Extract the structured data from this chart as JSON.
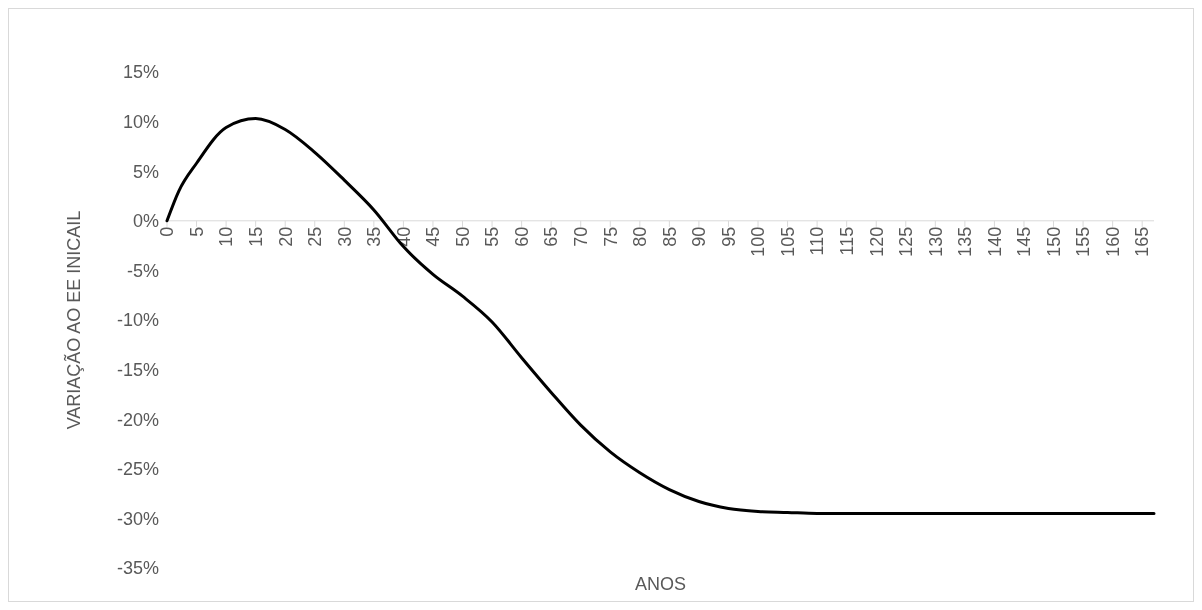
{
  "chart_data": {
    "type": "line",
    "xlabel": "ANOS",
    "ylabel": "VARIAÇÃO AO EE INICAIL",
    "x": [
      0,
      2,
      5,
      10,
      15,
      20,
      25,
      30,
      35,
      40,
      45,
      50,
      55,
      60,
      65,
      70,
      75,
      80,
      85,
      90,
      95,
      100,
      105,
      110,
      120,
      130,
      140,
      150,
      160,
      167
    ],
    "series": [
      {
        "color": "#000000",
        "values": [
          0,
          3,
          5.8,
          9.4,
          10.3,
          9.2,
          6.9,
          4.1,
          1.1,
          -2.6,
          -5.4,
          -7.6,
          -10.2,
          -13.8,
          -17.3,
          -20.6,
          -23.3,
          -25.4,
          -27.1,
          -28.3,
          -29,
          -29.3,
          -29.4,
          -29.5,
          -29.5,
          -29.5,
          -29.5,
          -29.5,
          -29.5,
          -29.5
        ]
      }
    ],
    "xlim": [
      0,
      167
    ],
    "xticks": [
      0,
      5,
      10,
      15,
      20,
      25,
      30,
      35,
      40,
      45,
      50,
      55,
      60,
      65,
      70,
      75,
      80,
      85,
      90,
      95,
      100,
      105,
      110,
      115,
      120,
      125,
      130,
      135,
      140,
      145,
      150,
      155,
      160,
      165
    ],
    "ylim": [
      -35,
      15
    ],
    "yticks": [
      {
        "value": 15,
        "label": "15%"
      },
      {
        "value": 10,
        "label": "10%"
      },
      {
        "value": 5,
        "label": "5%"
      },
      {
        "value": 0,
        "label": "0%"
      },
      {
        "value": -5,
        "label": "-5%"
      },
      {
        "value": -10,
        "label": "-10%"
      },
      {
        "value": -15,
        "label": "-15%"
      },
      {
        "value": -20,
        "label": "-20%"
      },
      {
        "value": -25,
        "label": "-25%"
      },
      {
        "value": -30,
        "label": "-30%"
      },
      {
        "value": -35,
        "label": "-35%"
      }
    ],
    "grid": false,
    "marker": "none",
    "line_style": "solid"
  }
}
